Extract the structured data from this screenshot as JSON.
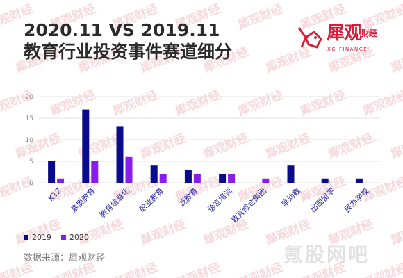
{
  "header": {
    "title_line1": "2020.11 VS 2019.11",
    "title_line2": "教育行业投资事件赛道细分"
  },
  "logo": {
    "name": "犀观",
    "suffix": "财经",
    "sub": "XG·FINANCE",
    "color": "#d6203a"
  },
  "watermark_text": "犀观财经",
  "corner_watermark": "氪股网吧",
  "source_label": "数据来源：犀观财经",
  "chart_data": {
    "type": "bar",
    "categories": [
      "K12",
      "素质教育",
      "教育信息化",
      "职业教育",
      "泛教育",
      "语言培训",
      "教育综合集团",
      "早幼教",
      "出国留学",
      "民办学校"
    ],
    "series": [
      {
        "name": "2019",
        "color": "#0a0a8c",
        "values": [
          5,
          17,
          13,
          4,
          3,
          2,
          0,
          4,
          1,
          1
        ]
      },
      {
        "name": "2020",
        "color": "#8a1cf0",
        "values": [
          1,
          5,
          6,
          2,
          2,
          2,
          1,
          0,
          0,
          0
        ]
      }
    ],
    "ylim": [
      0,
      20
    ],
    "yticks": [
      0,
      5,
      10,
      15,
      20
    ],
    "grid": true,
    "legend_position": "bottom-left"
  }
}
